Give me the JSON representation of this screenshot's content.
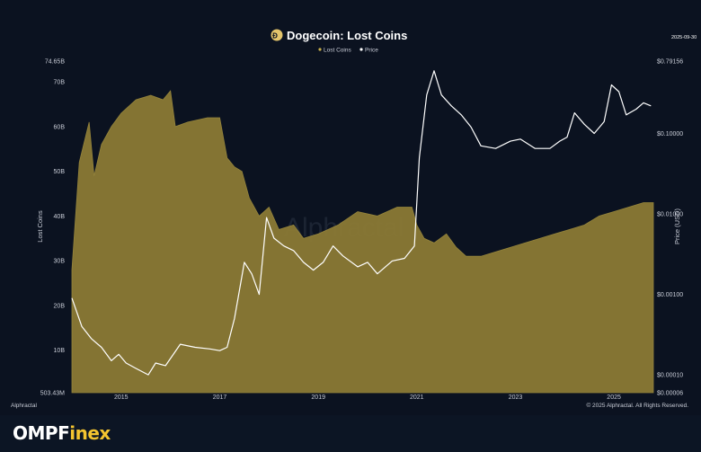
{
  "date_label": "2025-09-30",
  "source_left": "Alphractal",
  "source_right": "© 2025 Alphractal. All Rights Reserved.",
  "watermark": "Alphractal",
  "brand": {
    "part1": "OMPF",
    "part2": "inex"
  },
  "colors": {
    "background": "#0b1220",
    "lost_coins": "#8b7a35",
    "lost_coins_legend": "#c9b04a",
    "price": "#ffffff",
    "title_badge": "#e3c46b"
  },
  "chart_data": {
    "type": "area",
    "title": "Dogecoin: Lost Coins",
    "legend": [
      "Lost Coins",
      "Price"
    ],
    "legend_position": "top-center",
    "grid": false,
    "x_ticks": [
      "2015",
      "2017",
      "2019",
      "2021",
      "2023",
      "2025"
    ],
    "x_range": [
      2014.0,
      2025.8
    ],
    "y_left": {
      "label": "Lost Coins",
      "scale": "linear",
      "range": [
        503430000,
        74650000000
      ],
      "ticks": [
        {
          "value": 503430000,
          "label": "503.43M"
        },
        {
          "value": 10000000000,
          "label": "10B"
        },
        {
          "value": 20000000000,
          "label": "20B"
        },
        {
          "value": 30000000000,
          "label": "30B"
        },
        {
          "value": 40000000000,
          "label": "40B"
        },
        {
          "value": 50000000000,
          "label": "50B"
        },
        {
          "value": 60000000000,
          "label": "60B"
        },
        {
          "value": 70000000000,
          "label": "70B"
        },
        {
          "value": 74650000000,
          "label": "74.65B"
        }
      ]
    },
    "y_right": {
      "label": "Price (USD)",
      "scale": "log",
      "range": [
        6e-05,
        0.79156
      ],
      "ticks": [
        {
          "value": 6e-05,
          "label": "$0.00006"
        },
        {
          "value": 0.0001,
          "label": "$0.00010"
        },
        {
          "value": 0.001,
          "label": "$0.00100"
        },
        {
          "value": 0.01,
          "label": "$0.01000"
        },
        {
          "value": 0.1,
          "label": "$0.10000"
        },
        {
          "value": 0.79156,
          "label": "$0.79156"
        }
      ]
    },
    "series": [
      {
        "name": "Lost Coins",
        "axis": "left",
        "points": [
          [
            2014.0,
            28000000000
          ],
          [
            2014.15,
            52000000000
          ],
          [
            2014.35,
            61000000000
          ],
          [
            2014.45,
            49000000000
          ],
          [
            2014.6,
            56000000000
          ],
          [
            2014.8,
            60000000000
          ],
          [
            2015.0,
            63000000000
          ],
          [
            2015.3,
            66000000000
          ],
          [
            2015.6,
            67000000000
          ],
          [
            2015.85,
            66000000000
          ],
          [
            2016.0,
            68000000000
          ],
          [
            2016.1,
            60000000000
          ],
          [
            2016.35,
            61000000000
          ],
          [
            2016.75,
            62000000000
          ],
          [
            2017.0,
            62000000000
          ],
          [
            2017.15,
            53000000000
          ],
          [
            2017.3,
            51000000000
          ],
          [
            2017.45,
            50000000000
          ],
          [
            2017.6,
            44000000000
          ],
          [
            2017.8,
            40000000000
          ],
          [
            2018.0,
            42000000000
          ],
          [
            2018.2,
            37000000000
          ],
          [
            2018.5,
            38000000000
          ],
          [
            2018.7,
            35000000000
          ],
          [
            2019.0,
            36000000000
          ],
          [
            2019.4,
            38000000000
          ],
          [
            2019.8,
            41000000000
          ],
          [
            2020.2,
            40000000000
          ],
          [
            2020.6,
            42000000000
          ],
          [
            2020.9,
            42000000000
          ],
          [
            2021.0,
            38000000000
          ],
          [
            2021.15,
            35000000000
          ],
          [
            2021.35,
            34000000000
          ],
          [
            2021.6,
            36000000000
          ],
          [
            2021.8,
            33000000000
          ],
          [
            2022.0,
            31000000000
          ],
          [
            2022.3,
            31000000000
          ],
          [
            2022.6,
            32000000000
          ],
          [
            2022.9,
            33000000000
          ],
          [
            2023.2,
            34000000000
          ],
          [
            2023.5,
            35000000000
          ],
          [
            2023.8,
            36000000000
          ],
          [
            2024.1,
            37000000000
          ],
          [
            2024.4,
            38000000000
          ],
          [
            2024.7,
            40000000000
          ],
          [
            2025.0,
            41000000000
          ],
          [
            2025.3,
            42000000000
          ],
          [
            2025.6,
            43000000000
          ],
          [
            2025.8,
            43000000000
          ]
        ]
      },
      {
        "name": "Price",
        "axis": "right",
        "points": [
          [
            2014.0,
            0.0009
          ],
          [
            2014.2,
            0.0004
          ],
          [
            2014.4,
            0.00028
          ],
          [
            2014.6,
            0.00022
          ],
          [
            2014.8,
            0.00015
          ],
          [
            2014.95,
            0.00018
          ],
          [
            2015.1,
            0.00014
          ],
          [
            2015.3,
            0.00012
          ],
          [
            2015.55,
            0.0001
          ],
          [
            2015.7,
            0.00014
          ],
          [
            2015.9,
            0.00013
          ],
          [
            2016.2,
            0.00024
          ],
          [
            2016.5,
            0.00022
          ],
          [
            2016.8,
            0.00021
          ],
          [
            2017.0,
            0.0002
          ],
          [
            2017.15,
            0.00022
          ],
          [
            2017.3,
            0.0005
          ],
          [
            2017.5,
            0.0025
          ],
          [
            2017.65,
            0.0018
          ],
          [
            2017.8,
            0.001
          ],
          [
            2017.95,
            0.009
          ],
          [
            2018.1,
            0.005
          ],
          [
            2018.3,
            0.004
          ],
          [
            2018.5,
            0.0035
          ],
          [
            2018.7,
            0.0025
          ],
          [
            2018.9,
            0.002
          ],
          [
            2019.1,
            0.0025
          ],
          [
            2019.3,
            0.004
          ],
          [
            2019.5,
            0.003
          ],
          [
            2019.8,
            0.0022
          ],
          [
            2020.0,
            0.0025
          ],
          [
            2020.2,
            0.0018
          ],
          [
            2020.5,
            0.0026
          ],
          [
            2020.75,
            0.0028
          ],
          [
            2020.95,
            0.004
          ],
          [
            2021.05,
            0.05
          ],
          [
            2021.2,
            0.3
          ],
          [
            2021.35,
            0.6
          ],
          [
            2021.5,
            0.3
          ],
          [
            2021.7,
            0.22
          ],
          [
            2021.9,
            0.17
          ],
          [
            2022.1,
            0.12
          ],
          [
            2022.3,
            0.07
          ],
          [
            2022.6,
            0.065
          ],
          [
            2022.9,
            0.08
          ],
          [
            2023.1,
            0.085
          ],
          [
            2023.4,
            0.065
          ],
          [
            2023.7,
            0.065
          ],
          [
            2023.9,
            0.08
          ],
          [
            2024.05,
            0.09
          ],
          [
            2024.2,
            0.18
          ],
          [
            2024.4,
            0.13
          ],
          [
            2024.6,
            0.1
          ],
          [
            2024.8,
            0.14
          ],
          [
            2024.95,
            0.4
          ],
          [
            2025.1,
            0.33
          ],
          [
            2025.25,
            0.17
          ],
          [
            2025.45,
            0.2
          ],
          [
            2025.6,
            0.24
          ],
          [
            2025.75,
            0.22
          ]
        ]
      }
    ]
  }
}
